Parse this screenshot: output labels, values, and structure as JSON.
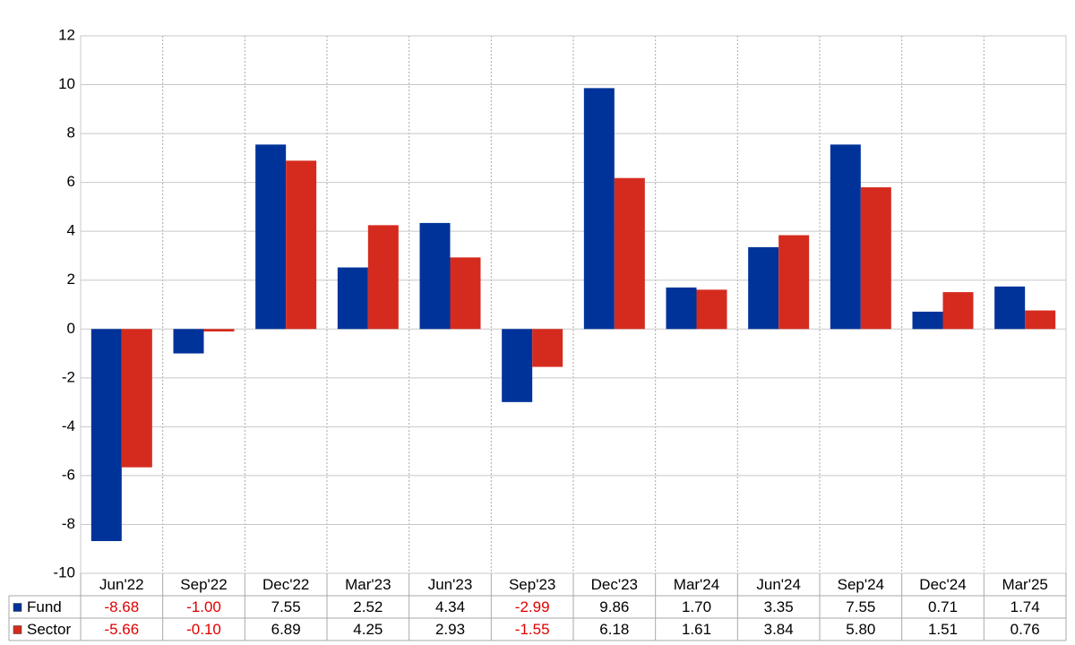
{
  "chart_data": {
    "type": "bar",
    "categories": [
      "Jun'22",
      "Sep'22",
      "Dec'22",
      "Mar'23",
      "Jun'23",
      "Sep'23",
      "Dec'23",
      "Mar'24",
      "Jun'24",
      "Sep'24",
      "Dec'24",
      "Mar'25"
    ],
    "series": [
      {
        "name": "Fund",
        "color": "#003399",
        "values": [
          -8.68,
          -1.0,
          7.55,
          2.52,
          4.34,
          -2.99,
          9.86,
          1.7,
          3.35,
          7.55,
          0.71,
          1.74
        ],
        "value_labels": [
          "-8.68",
          "-1.00",
          "7.55",
          "2.52",
          "4.34",
          "-2.99",
          "9.86",
          "1.70",
          "3.35",
          "7.55",
          "0.71",
          "1.74"
        ]
      },
      {
        "name": "Sector",
        "color": "#d52b1e",
        "values": [
          -5.66,
          -0.1,
          6.89,
          4.25,
          2.93,
          -1.55,
          6.18,
          1.61,
          3.84,
          5.8,
          1.51,
          0.76
        ],
        "value_labels": [
          "-5.66",
          "-0.10",
          "6.89",
          "4.25",
          "2.93",
          "-1.55",
          "6.18",
          "1.61",
          "3.84",
          "5.80",
          "1.51",
          "0.76"
        ]
      }
    ],
    "ylim": [
      -10,
      12
    ],
    "yticks": [
      -10,
      -8,
      -6,
      -4,
      -2,
      0,
      2,
      4,
      6,
      8,
      10,
      12
    ],
    "grid": true,
    "negative_label_color": "#e00000"
  }
}
